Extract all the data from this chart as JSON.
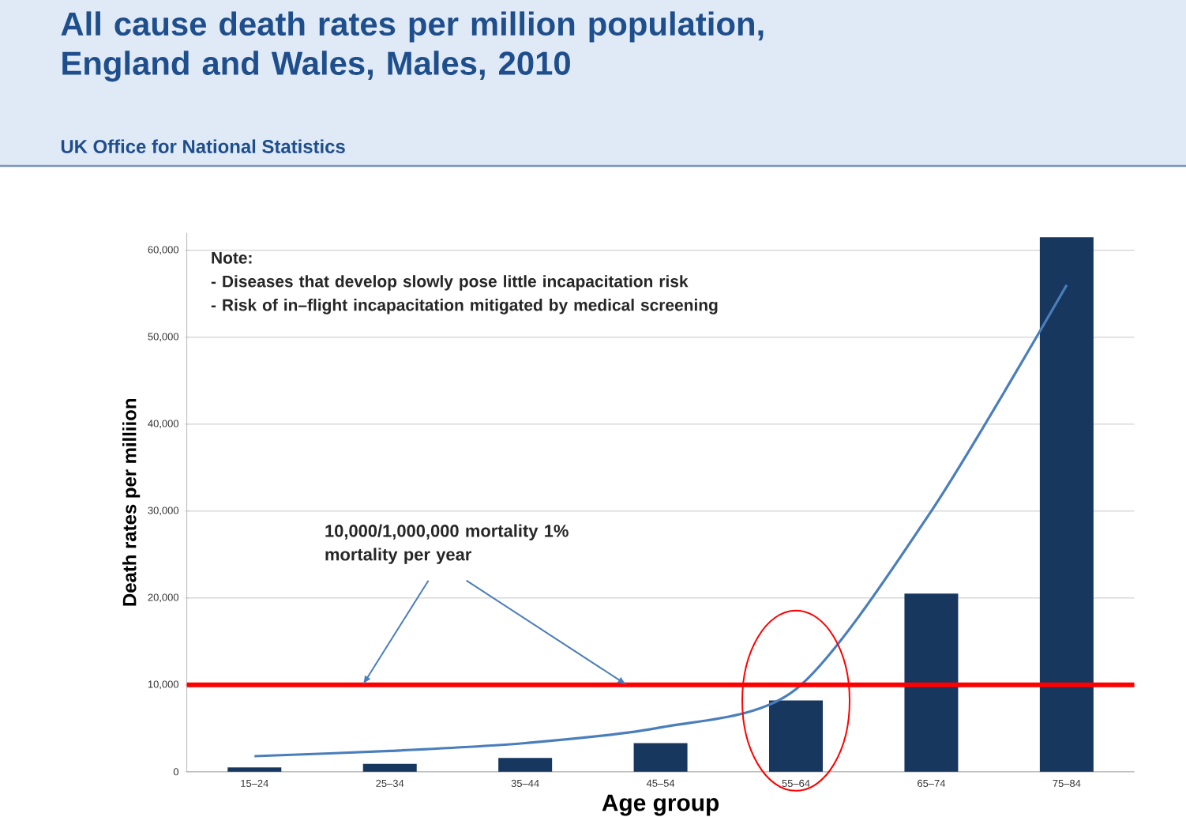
{
  "chart_data": {
    "type": "bar",
    "title": "All cause death rates per million population, England and Wales, Males, 2010",
    "subtitle": "UK Office for National Statistics",
    "xlabel": "Age group",
    "ylabel": "Death rates per milliion",
    "categories": [
      "15–24",
      "25–34",
      "35–44",
      "45–54",
      "55–64",
      "65–74",
      "75–84"
    ],
    "series": [
      {
        "color": "#17375e",
        "values": [
          500,
          900,
          1600,
          3300,
          8200,
          20500,
          61500
        ]
      },
      {
        "type": "line",
        "color": "#4a7ebb",
        "values": [
          1800,
          2400,
          3300,
          5100,
          9500,
          30000,
          56000
        ]
      }
    ],
    "ylim": [
      0,
      62000
    ],
    "yticks": [
      {
        "value": 0,
        "label": "0"
      },
      {
        "value": 10000,
        "label": "10,000"
      },
      {
        "value": 20000,
        "label": "20,000"
      },
      {
        "value": 30000,
        "label": "30,000"
      },
      {
        "value": 40000,
        "label": "40,000"
      },
      {
        "value": 50000,
        "label": "50,000"
      },
      {
        "value": 60000,
        "label": "60,000"
      }
    ],
    "grid": "y",
    "ref_lines": [
      {
        "axis": "y",
        "value": 10000,
        "label": "10,000/1,000,000 mortality 1% mortality per year",
        "color": "#ff0000"
      }
    ],
    "annotations": [
      "Note:",
      "- Diseases that develop slowly pose little incapacitation risk",
      "- Risk of in–flight incapacitation mitigated by medical screening"
    ]
  }
}
